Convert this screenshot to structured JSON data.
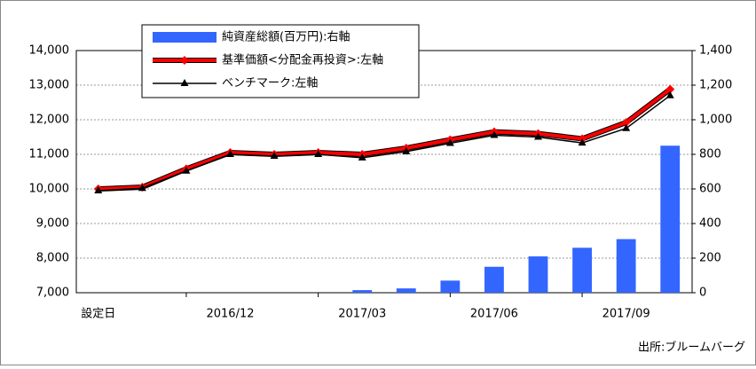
{
  "chart_data": {
    "type": "combo",
    "categories": [
      "設定日",
      null,
      null,
      "2016/12",
      null,
      null,
      "2017/03",
      null,
      null,
      "2017/06",
      null,
      null,
      "2017/09",
      null
    ],
    "series": [
      {
        "name": "純資産総額(百万円):右軸",
        "type": "bar",
        "axis": "y2",
        "color": "#3366ff",
        "values": [
          0,
          0,
          0,
          0,
          0,
          0,
          15,
          25,
          70,
          150,
          210,
          260,
          310,
          850
        ]
      },
      {
        "name": "基準価額<分配金再投資>:左軸",
        "type": "line",
        "color": "#ff0000",
        "values": [
          10000,
          10050,
          10580,
          11050,
          11000,
          11050,
          11000,
          11180,
          11420,
          11650,
          11600,
          11450,
          11920,
          12880
        ]
      },
      {
        "name": "ベンチマーク:左軸",
        "type": "line",
        "color": "#000000",
        "values": [
          9950,
          10020,
          10520,
          11000,
          10950,
          11000,
          10900,
          11080,
          11320,
          11550,
          11500,
          11330,
          11750,
          12700
        ]
      }
    ],
    "ylim": [
      7000,
      14000
    ],
    "yticks": [
      {
        "value": 7000,
        "label": "7,000"
      },
      {
        "value": 8000,
        "label": "8,000"
      },
      {
        "value": 9000,
        "label": "9,000"
      },
      {
        "value": 10000,
        "label": "10,000"
      },
      {
        "value": 11000,
        "label": "11,000"
      },
      {
        "value": 12000,
        "label": "12,000"
      },
      {
        "value": 13000,
        "label": "13,000"
      },
      {
        "value": 14000,
        "label": "14,000"
      }
    ],
    "y2lim": [
      0,
      1400
    ],
    "y2ticks": [
      0,
      200,
      400,
      600,
      800,
      {
        "value": 1000,
        "label": "1,000"
      },
      {
        "value": 1200,
        "label": "1,200"
      },
      {
        "value": 1400,
        "label": "1,400"
      }
    ],
    "grid": true,
    "source": "出所:ブルームバーグ"
  }
}
